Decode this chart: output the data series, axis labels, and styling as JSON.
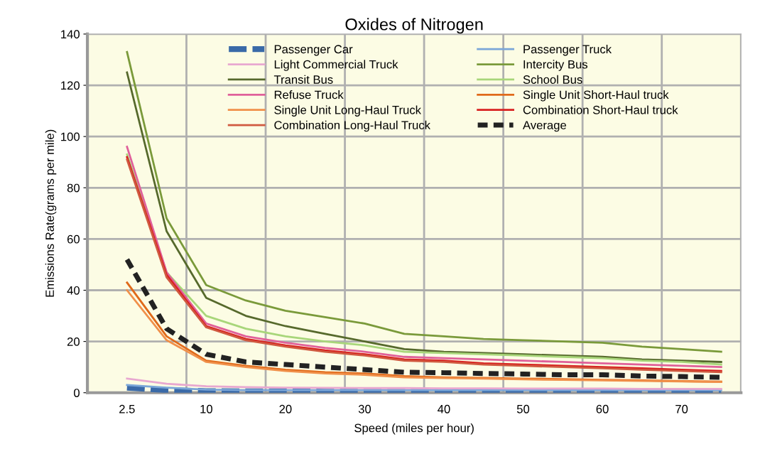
{
  "chart_data": {
    "type": "line",
    "title": "Oxides of Nitrogen",
    "xlabel": "Speed (miles per hour)",
    "ylabel": "Emissions Rate(grams per mile)",
    "categories": [
      "2.5",
      null,
      "10",
      null,
      "20",
      null,
      "30",
      null,
      "40",
      null,
      "50",
      null,
      "60",
      null,
      "70",
      null
    ],
    "ylim": [
      0,
      140
    ],
    "yticks": [
      0,
      20,
      40,
      60,
      80,
      100,
      120,
      140
    ],
    "grid": true,
    "legend": "top",
    "marker": "none",
    "series": [
      {
        "name": "Passenger Car",
        "color": "#3a6aa8",
        "line_style": "dashed",
        "values": [
          2,
          1,
          0.6,
          0.5,
          0.5,
          0.4,
          0.4,
          0.4,
          0.4,
          0.4,
          0.4,
          0.4,
          0.4,
          0.4,
          0.4,
          0.4
        ]
      },
      {
        "name": "Passenger Truck",
        "color": "#7aa6d8",
        "line_style": "solid",
        "values": [
          3,
          2,
          1.2,
          1,
          1,
          1,
          1,
          1,
          1,
          1,
          1,
          1,
          1,
          1,
          1,
          1
        ]
      },
      {
        "name": "Light Commercial Truck",
        "color": "#e8a8d0",
        "line_style": "solid",
        "values": [
          5.5,
          3.5,
          2.5,
          2.2,
          2,
          1.9,
          1.8,
          1.8,
          1.7,
          1.7,
          1.6,
          1.6,
          1.6,
          1.5,
          1.5,
          1.5
        ]
      },
      {
        "name": "Intercity Bus",
        "color": "#7a9a3a",
        "line_style": "solid",
        "values": [
          133,
          68,
          42,
          36,
          32,
          29.5,
          27,
          23,
          22,
          21,
          20.5,
          20,
          19.5,
          18,
          17,
          16
        ]
      },
      {
        "name": "Transit Bus",
        "color": "#56692c",
        "line_style": "solid",
        "values": [
          125,
          63,
          37,
          30,
          26,
          23,
          20,
          17,
          16,
          15.5,
          15,
          14.5,
          14,
          13,
          12.5,
          12
        ]
      },
      {
        "name": "School Bus",
        "color": "#a8d67a",
        "line_style": "solid",
        "values": [
          93,
          47,
          30,
          25,
          22,
          20,
          18.5,
          16,
          15.5,
          15,
          14.5,
          14,
          13.5,
          12.5,
          12,
          11
        ]
      },
      {
        "name": "Refuse Truck",
        "color": "#e0609a",
        "line_style": "solid",
        "values": [
          96,
          47,
          27,
          22,
          19.5,
          17.5,
          16,
          14,
          13.5,
          13,
          12.5,
          12,
          11.5,
          11,
          10.5,
          10
        ]
      },
      {
        "name": "Single Unit Short-Haul truck",
        "color": "#e06a1a",
        "line_style": "solid",
        "values": [
          43,
          22,
          12.5,
          10.5,
          9,
          8,
          7.5,
          6.5,
          6,
          5.8,
          5.5,
          5.3,
          5,
          4.8,
          4.5,
          4.3
        ]
      },
      {
        "name": "Single Unit Long-Haul Truck",
        "color": "#f0904a",
        "line_style": "solid",
        "values": [
          40,
          20.5,
          12,
          10,
          8.5,
          7.5,
          7,
          6,
          5.7,
          5.5,
          5.2,
          5,
          4.8,
          4.6,
          4.4,
          4.2
        ]
      },
      {
        "name": "Combination Short-Haul truck",
        "color": "#d82020",
        "line_style": "solid",
        "values": [
          92,
          46,
          26,
          21,
          18.5,
          16.5,
          15,
          13,
          12.5,
          11.5,
          11,
          10.5,
          10,
          9.5,
          9,
          8.5
        ]
      },
      {
        "name": "Combination Long-Haul Truck",
        "color": "#d05a40",
        "line_style": "solid",
        "values": [
          91,
          45,
          25.5,
          20.5,
          18,
          16,
          14.5,
          12.5,
          12,
          11,
          10.5,
          10,
          9.5,
          9,
          8.5,
          8
        ]
      },
      {
        "name": "Average",
        "color": "#222222",
        "line_style": "dashed",
        "values": [
          52,
          25,
          15,
          12,
          11,
          10,
          9,
          8,
          7.8,
          7.5,
          7.3,
          7,
          7,
          6.5,
          6.3,
          6
        ]
      }
    ]
  }
}
